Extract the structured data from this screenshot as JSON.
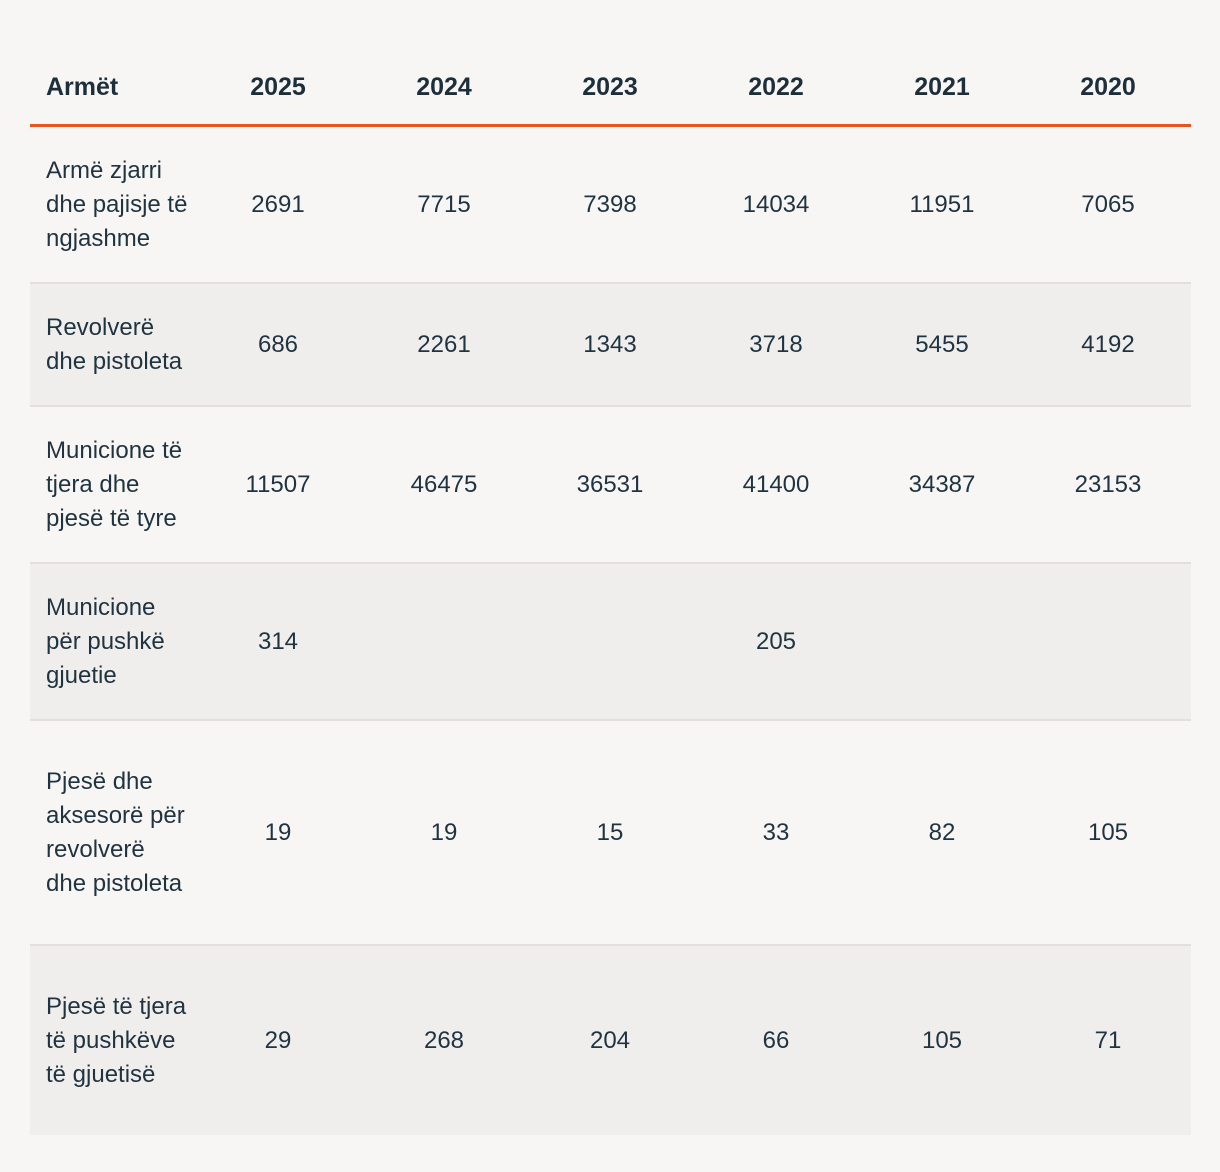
{
  "table": {
    "headers": [
      "Armët",
      "2025",
      "2024",
      "2023",
      "2022",
      "2021",
      "2020"
    ],
    "rows": [
      {
        "label": "Armë zjarri dhe pajisje të ngjashme",
        "values": [
          "2691",
          "7715",
          "7398",
          "14034",
          "11951",
          "7065"
        ]
      },
      {
        "label": "Revolverë dhe pistoleta",
        "values": [
          "686",
          "2261",
          "1343",
          "3718",
          "5455",
          "4192"
        ]
      },
      {
        "label": "Municione të tjera dhe pjesë të tyre",
        "values": [
          "11507",
          "46475",
          "36531",
          "41400",
          "34387",
          "23153"
        ]
      },
      {
        "label": "Municione për pushkë gjuetie",
        "values": [
          "314",
          "",
          "",
          "205",
          "",
          ""
        ]
      },
      {
        "label": "Pjesë dhe aksesorë për revolverë dhe pistoleta",
        "values": [
          "19",
          "19",
          "15",
          "33",
          "82",
          "105"
        ]
      },
      {
        "label": "Pjesë të tjera të pushkëve të gjuetisë",
        "values": [
          "29",
          "268",
          "204",
          "66",
          "105",
          "71"
        ]
      }
    ]
  },
  "colors": {
    "header_rule": "#e9561c",
    "text": "#1f3340",
    "row_alt_background": "#f0eeec",
    "background": "#f8f6f4"
  }
}
